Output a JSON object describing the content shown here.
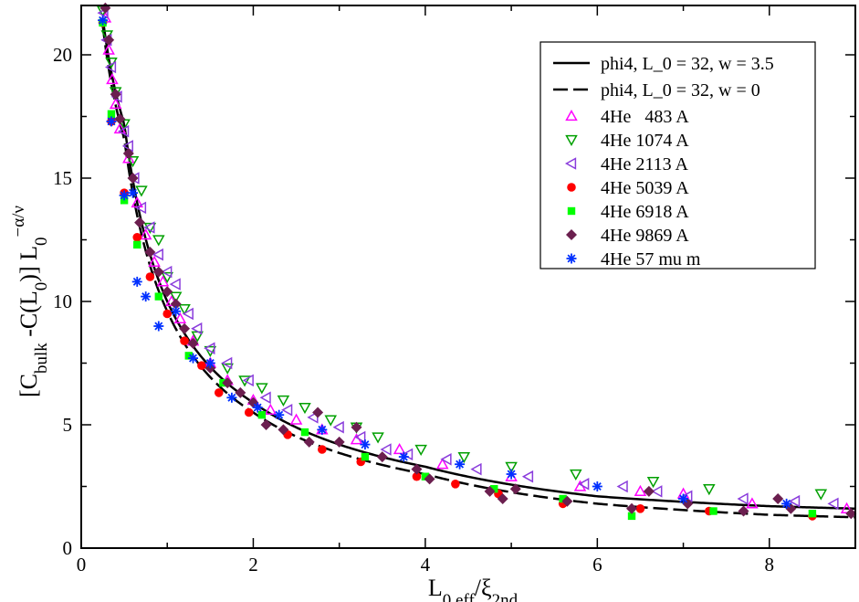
{
  "chart_data": {
    "type": "scatter",
    "title": "",
    "xlabel": {
      "main": "L",
      "sub1": "0,eff",
      "mid": "/ξ",
      "sub2": "2nd"
    },
    "ylabel": {
      "pre": "[C",
      "sub1": "bulk",
      "mid1": " -C(L",
      "sub2": "0",
      "mid2": ")] L",
      "sub3": "0",
      "sup": "−α/ν"
    },
    "xlim": [
      0,
      9
    ],
    "ylim": [
      0,
      22
    ],
    "xticks": [
      0,
      2,
      4,
      6,
      8
    ],
    "yticks": [
      0,
      5,
      10,
      15,
      20
    ],
    "legend_position": "top-right",
    "curves": [
      {
        "name": "phi4, L_0 = 32, w = 3.5",
        "style": "solid",
        "A": 5.6,
        "B": 1.15,
        "ref": [
          [
            0.25,
            21.5
          ],
          [
            0.5,
            17.2
          ],
          [
            1,
            10
          ],
          [
            2,
            5.9
          ],
          [
            4,
            3.3
          ],
          [
            6,
            2.1
          ],
          [
            8,
            1.7
          ],
          [
            9,
            1.6
          ]
        ]
      },
      {
        "name": "phi4, L_0 = 32, w = 0",
        "style": "dashed",
        "A": 5.3,
        "B": 0.95,
        "ref": [
          [
            0.25,
            21.2
          ],
          [
            0.5,
            16.6
          ],
          [
            1,
            9.6
          ],
          [
            2,
            5.5
          ],
          [
            4,
            3.0
          ],
          [
            6,
            1.8
          ],
          [
            8,
            1.35
          ],
          [
            9,
            1.25
          ]
        ]
      }
    ],
    "series": [
      {
        "name": "4He   483 A",
        "marker": "triangle-up",
        "color": "#ff00ff",
        "points": [
          [
            0.28,
            21.5
          ],
          [
            0.32,
            20.2
          ],
          [
            0.36,
            19.0
          ],
          [
            0.4,
            18.0
          ],
          [
            0.45,
            17.0
          ],
          [
            0.55,
            15.8
          ],
          [
            0.65,
            14.0
          ],
          [
            0.75,
            12.7
          ],
          [
            0.85,
            11.6
          ],
          [
            0.95,
            10.8
          ],
          [
            1.05,
            10.0
          ],
          [
            1.15,
            9.3
          ],
          [
            1.3,
            8.4
          ],
          [
            1.5,
            7.5
          ],
          [
            1.7,
            6.8
          ],
          [
            2.0,
            6.0
          ],
          [
            2.2,
            5.6
          ],
          [
            2.5,
            5.2
          ],
          [
            2.8,
            4.8
          ],
          [
            3.2,
            4.4
          ],
          [
            3.7,
            4.0
          ],
          [
            4.2,
            3.4
          ],
          [
            5.0,
            2.9
          ],
          [
            5.8,
            2.5
          ],
          [
            6.5,
            2.3
          ],
          [
            7.0,
            2.2
          ],
          [
            7.8,
            1.8
          ],
          [
            8.9,
            1.6
          ]
        ]
      },
      {
        "name": "4He 1074 A",
        "marker": "triangle-down",
        "color": "#00a000",
        "points": [
          [
            0.25,
            21.8
          ],
          [
            0.3,
            20.8
          ],
          [
            0.35,
            19.7
          ],
          [
            0.4,
            18.5
          ],
          [
            0.5,
            17.2
          ],
          [
            0.6,
            15.7
          ],
          [
            0.7,
            14.5
          ],
          [
            0.8,
            13.0
          ],
          [
            0.9,
            12.5
          ],
          [
            1.0,
            11.0
          ],
          [
            1.1,
            10.2
          ],
          [
            1.2,
            9.7
          ],
          [
            1.35,
            8.6
          ],
          [
            1.5,
            8.0
          ],
          [
            1.7,
            7.3
          ],
          [
            1.9,
            6.8
          ],
          [
            2.1,
            6.5
          ],
          [
            2.35,
            6.0
          ],
          [
            2.6,
            5.7
          ],
          [
            2.9,
            5.2
          ],
          [
            3.2,
            4.9
          ],
          [
            3.45,
            4.5
          ],
          [
            3.95,
            4.0
          ],
          [
            4.45,
            3.7
          ],
          [
            5.0,
            3.3
          ],
          [
            5.75,
            3.0
          ],
          [
            6.65,
            2.7
          ],
          [
            7.3,
            2.4
          ],
          [
            8.6,
            2.2
          ]
        ]
      },
      {
        "name": "4He 2113 A",
        "marker": "triangle-left",
        "color": "#8a3cdc",
        "points": [
          [
            0.26,
            21.7
          ],
          [
            0.3,
            20.6
          ],
          [
            0.35,
            19.5
          ],
          [
            0.42,
            18.3
          ],
          [
            0.5,
            16.9
          ],
          [
            0.55,
            16.3
          ],
          [
            0.62,
            15.0
          ],
          [
            0.7,
            13.8
          ],
          [
            0.8,
            13.0
          ],
          [
            0.9,
            11.9
          ],
          [
            1.0,
            11.2
          ],
          [
            1.1,
            10.7
          ],
          [
            1.25,
            9.5
          ],
          [
            1.35,
            8.9
          ],
          [
            1.5,
            8.1
          ],
          [
            1.7,
            7.5
          ],
          [
            1.95,
            6.8
          ],
          [
            2.15,
            6.1
          ],
          [
            2.4,
            5.6
          ],
          [
            2.7,
            5.3
          ],
          [
            3.0,
            4.9
          ],
          [
            3.25,
            4.5
          ],
          [
            3.55,
            4.0
          ],
          [
            3.8,
            3.8
          ],
          [
            4.25,
            3.6
          ],
          [
            4.6,
            3.2
          ],
          [
            5.2,
            2.9
          ],
          [
            5.85,
            2.6
          ],
          [
            6.3,
            2.5
          ],
          [
            6.7,
            2.3
          ],
          [
            7.05,
            2.1
          ],
          [
            7.7,
            2.0
          ],
          [
            8.3,
            1.9
          ],
          [
            8.75,
            1.8
          ]
        ]
      },
      {
        "name": "4He 5039 A",
        "marker": "circle",
        "color": "#ff0000",
        "points": [
          [
            0.25,
            21.3
          ],
          [
            0.35,
            17.3
          ],
          [
            0.5,
            14.4
          ],
          [
            0.65,
            12.6
          ],
          [
            0.8,
            11.0
          ],
          [
            1.0,
            9.5
          ],
          [
            1.2,
            8.4
          ],
          [
            1.4,
            7.4
          ],
          [
            1.6,
            6.3
          ],
          [
            1.95,
            5.5
          ],
          [
            2.4,
            4.6
          ],
          [
            2.8,
            4.0
          ],
          [
            3.25,
            3.5
          ],
          [
            3.9,
            2.9
          ],
          [
            4.35,
            2.6
          ],
          [
            4.85,
            2.2
          ],
          [
            5.6,
            1.8
          ],
          [
            6.5,
            1.6
          ],
          [
            7.3,
            1.5
          ],
          [
            8.5,
            1.3
          ]
        ]
      },
      {
        "name": "4He 6918 A",
        "marker": "square",
        "color": "#00ff00",
        "points": [
          [
            0.25,
            21.3
          ],
          [
            0.35,
            17.6
          ],
          [
            0.5,
            14.1
          ],
          [
            0.65,
            12.3
          ],
          [
            0.9,
            10.2
          ],
          [
            1.25,
            7.8
          ],
          [
            1.65,
            6.7
          ],
          [
            2.1,
            5.4
          ],
          [
            2.6,
            4.7
          ],
          [
            3.3,
            3.7
          ],
          [
            4.0,
            2.9
          ],
          [
            4.8,
            2.4
          ],
          [
            5.6,
            2.0
          ],
          [
            6.4,
            1.3
          ],
          [
            7.35,
            1.5
          ],
          [
            8.5,
            1.4
          ]
        ]
      },
      {
        "name": "4He 9869 A",
        "marker": "diamond",
        "color": "#6b1f4f",
        "points": [
          [
            0.28,
            21.9
          ],
          [
            0.32,
            20.6
          ],
          [
            0.4,
            18.4
          ],
          [
            0.45,
            17.4
          ],
          [
            0.55,
            16.0
          ],
          [
            0.6,
            15.0
          ],
          [
            0.68,
            13.2
          ],
          [
            0.8,
            12.0
          ],
          [
            0.9,
            11.2
          ],
          [
            1.0,
            10.4
          ],
          [
            1.1,
            9.9
          ],
          [
            1.2,
            8.9
          ],
          [
            1.3,
            8.3
          ],
          [
            1.5,
            7.3
          ],
          [
            1.7,
            6.7
          ],
          [
            1.85,
            6.3
          ],
          [
            2.0,
            5.9
          ],
          [
            2.15,
            5.0
          ],
          [
            2.35,
            4.8
          ],
          [
            2.65,
            4.3
          ],
          [
            2.75,
            5.5
          ],
          [
            3.0,
            4.3
          ],
          [
            3.2,
            4.9
          ],
          [
            3.5,
            3.7
          ],
          [
            3.9,
            3.2
          ],
          [
            4.05,
            2.8
          ],
          [
            4.75,
            2.3
          ],
          [
            4.9,
            2.0
          ],
          [
            5.05,
            2.4
          ],
          [
            5.65,
            1.9
          ],
          [
            6.4,
            1.6
          ],
          [
            6.6,
            2.3
          ],
          [
            7.05,
            1.8
          ],
          [
            7.7,
            1.5
          ],
          [
            8.1,
            2.0
          ],
          [
            8.25,
            1.6
          ],
          [
            8.95,
            1.4
          ]
        ]
      },
      {
        "name": "4He 57 mu m",
        "marker": "asterisk",
        "color": "#0030ff",
        "points": [
          [
            0.25,
            21.4
          ],
          [
            0.35,
            17.3
          ],
          [
            0.5,
            14.3
          ],
          [
            0.6,
            14.4
          ],
          [
            0.65,
            10.8
          ],
          [
            0.75,
            10.2
          ],
          [
            0.9,
            9.0
          ],
          [
            1.1,
            9.6
          ],
          [
            1.3,
            7.7
          ],
          [
            1.5,
            7.5
          ],
          [
            1.75,
            6.1
          ],
          [
            2.05,
            5.7
          ],
          [
            2.3,
            5.4
          ],
          [
            2.8,
            4.8
          ],
          [
            3.3,
            4.2
          ],
          [
            3.75,
            3.7
          ],
          [
            4.4,
            3.4
          ],
          [
            5.0,
            3.0
          ],
          [
            6.0,
            2.5
          ],
          [
            7.0,
            2.0
          ],
          [
            8.2,
            1.8
          ]
        ]
      }
    ]
  }
}
